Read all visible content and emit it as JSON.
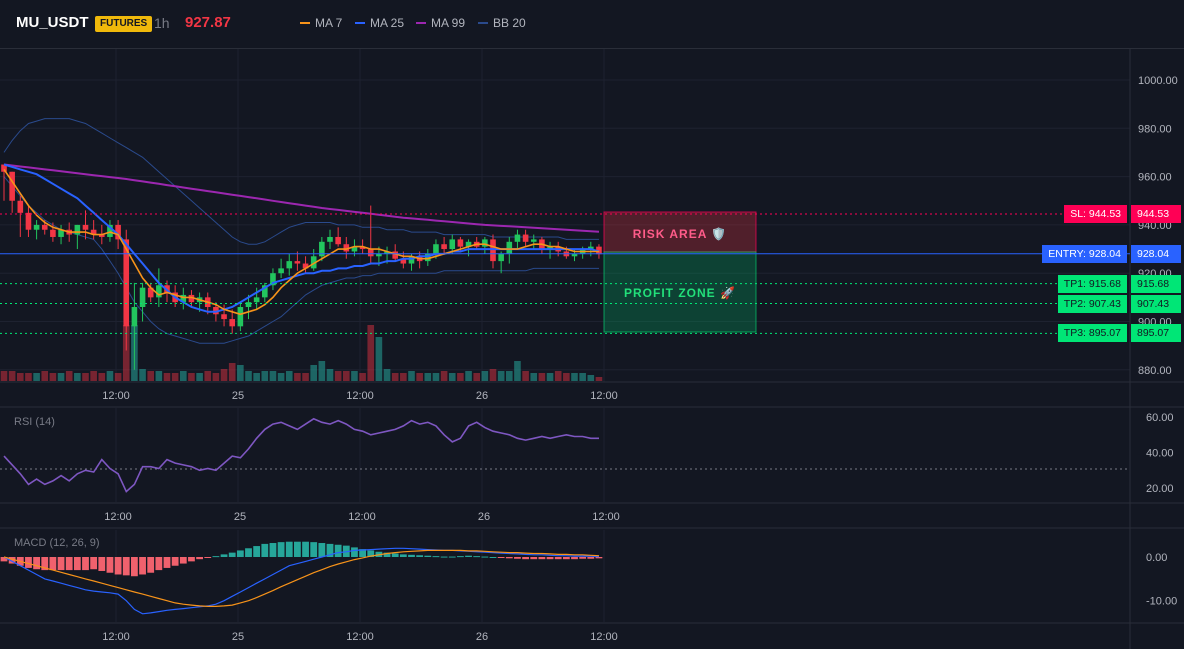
{
  "header": {
    "symbol": "MU_USDT",
    "badge": "FUTURES",
    "timeframe": "1h",
    "price": "927.87",
    "legend": [
      {
        "label": "MA 7",
        "color": "#f7931a"
      },
      {
        "label": "MA 25",
        "color": "#2962ff"
      },
      {
        "label": "MA 99",
        "color": "#9c27b0"
      },
      {
        "label": "BB 20",
        "color": "#2a4a8c"
      }
    ]
  },
  "colors": {
    "up": "#22c55e",
    "down": "#f23645",
    "ma7": "#f7931a",
    "ma25": "#2962ff",
    "ma99": "#9c27b0",
    "bb": "#2a4a8c",
    "rsi": "#7e57c2",
    "tp": "#00e676",
    "entry": "#2962ff",
    "sl": "#ff0055"
  },
  "price_axis": [
    "1000.00",
    "980.00",
    "960.00",
    "940.00",
    "920.00",
    "900.00",
    "880.00"
  ],
  "time_axis": [
    "12:00",
    "25",
    "12:00",
    "26",
    "12:00"
  ],
  "rsi": {
    "label": "RSI (14)",
    "axis": [
      "60.00",
      "40.00",
      "20.00"
    ]
  },
  "macd": {
    "label": "MACD (12, 26, 9)",
    "axis": [
      "0.00",
      "-10.00"
    ]
  },
  "zones": {
    "risk": "RISK AREA 🛡️",
    "profit": "PROFIT ZONE 🚀"
  },
  "levels": [
    {
      "name": "sl",
      "text": "SL: 944.53",
      "value": "944.53",
      "price": 944.53
    },
    {
      "name": "entry",
      "text": "ENTRY: 928.04",
      "value": "928.04",
      "price": 928.04
    },
    {
      "name": "tp1",
      "text": "TP1: 915.68",
      "value": "915.68",
      "price": 915.68
    },
    {
      "name": "tp2",
      "text": "TP2: 907.43",
      "value": "907.43",
      "price": 907.43
    },
    {
      "name": "tp3",
      "text": "TP3: 895.07",
      "value": "895.07",
      "price": 895.07
    }
  ],
  "chart_data": [
    {
      "type": "candlestick",
      "title": "MU_USDT 1h",
      "y_axis_ticks": [
        1000,
        980,
        960,
        940,
        920,
        900,
        880
      ],
      "ohlc": [
        [
          965,
          965,
          950,
          962
        ],
        [
          962,
          962,
          945,
          950
        ],
        [
          950,
          952,
          935,
          945
        ],
        [
          945,
          948,
          935,
          938
        ],
        [
          938,
          942,
          934,
          940
        ],
        [
          940,
          942,
          936,
          938
        ],
        [
          938,
          941,
          933,
          935
        ],
        [
          935,
          940,
          932,
          938
        ],
        [
          938,
          941,
          933,
          936
        ],
        [
          936,
          940,
          930,
          940
        ],
        [
          940,
          946,
          934,
          938
        ],
        [
          938,
          942,
          934,
          936
        ],
        [
          936,
          940,
          932,
          935
        ],
        [
          935,
          942,
          933,
          940
        ],
        [
          940,
          942,
          930,
          934
        ],
        [
          934,
          938,
          888,
          898
        ],
        [
          898,
          916,
          880,
          906
        ],
        [
          906,
          916,
          900,
          914
        ],
        [
          914,
          916,
          908,
          910
        ],
        [
          910,
          922,
          906,
          915
        ],
        [
          915,
          917,
          908,
          912
        ],
        [
          912,
          915,
          906,
          908
        ],
        [
          908,
          914,
          905,
          911
        ],
        [
          911,
          913,
          906,
          908
        ],
        [
          908,
          912,
          904,
          910
        ],
        [
          910,
          912,
          903,
          906
        ],
        [
          906,
          908,
          900,
          903
        ],
        [
          903,
          907,
          898,
          901
        ],
        [
          901,
          905,
          895,
          898
        ],
        [
          898,
          908,
          896,
          906
        ],
        [
          906,
          911,
          901,
          908
        ],
        [
          908,
          914,
          905,
          910
        ],
        [
          910,
          916,
          908,
          915
        ],
        [
          915,
          922,
          913,
          920
        ],
        [
          920,
          926,
          918,
          922
        ],
        [
          922,
          928,
          919,
          925
        ],
        [
          925,
          929,
          921,
          924
        ],
        [
          924,
          927,
          920,
          922
        ],
        [
          922,
          930,
          921,
          927
        ],
        [
          927,
          935,
          925,
          933
        ],
        [
          933,
          938,
          930,
          935
        ],
        [
          935,
          939,
          931,
          932
        ],
        [
          932,
          935,
          926,
          929
        ],
        [
          929,
          934,
          927,
          931
        ],
        [
          931,
          934,
          928,
          930
        ],
        [
          930,
          948,
          924,
          927
        ],
        [
          927,
          931,
          923,
          928
        ],
        [
          928,
          931,
          924,
          929
        ],
        [
          929,
          932,
          925,
          926
        ],
        [
          926,
          929,
          922,
          924
        ],
        [
          924,
          928,
          921,
          927
        ],
        [
          927,
          929,
          922,
          925
        ],
        [
          925,
          930,
          923,
          928
        ],
        [
          928,
          934,
          926,
          932
        ],
        [
          932,
          935,
          928,
          930
        ],
        [
          930,
          936,
          928,
          934
        ],
        [
          934,
          935,
          929,
          931
        ],
        [
          931,
          934,
          927,
          933
        ],
        [
          933,
          935,
          930,
          931
        ],
        [
          931,
          935,
          928,
          934
        ],
        [
          934,
          936,
          922,
          925
        ],
        [
          925,
          929,
          920,
          928
        ],
        [
          928,
          935,
          924,
          933
        ],
        [
          933,
          938,
          930,
          936
        ],
        [
          936,
          938,
          931,
          933
        ],
        [
          933,
          936,
          930,
          934
        ],
        [
          934,
          935,
          928,
          930
        ],
        [
          930,
          933,
          926,
          931
        ],
        [
          931,
          933,
          927,
          929
        ],
        [
          929,
          931,
          926,
          927
        ],
        [
          927,
          930,
          925,
          928
        ],
        [
          928,
          931,
          926,
          930
        ],
        [
          930,
          933,
          927,
          931
        ],
        [
          931,
          932,
          926,
          927.87
        ]
      ],
      "ma7": [
        963,
        958,
        953,
        948,
        944,
        941,
        939,
        938,
        937,
        937,
        937,
        936,
        936,
        937,
        936,
        930,
        924,
        918,
        914,
        911,
        912,
        911,
        910,
        910,
        909,
        908,
        907,
        905,
        904,
        903,
        904,
        905,
        907,
        910,
        914,
        917,
        920,
        922,
        924,
        926,
        928,
        930,
        930,
        931,
        931,
        930,
        930,
        929,
        928,
        927,
        927,
        926,
        926,
        927,
        928,
        929,
        930,
        931,
        932,
        932,
        931,
        930,
        930,
        930,
        931,
        932,
        932,
        931,
        931,
        930,
        929,
        929,
        929,
        929
      ],
      "ma25": [
        965,
        964,
        963,
        962,
        961,
        959,
        957,
        955,
        953,
        951,
        948,
        945,
        942,
        939,
        936,
        932,
        928,
        924,
        920,
        916,
        913,
        910,
        908,
        906,
        905,
        904,
        904,
        905,
        906,
        908,
        910,
        912,
        914,
        916,
        917,
        918,
        919,
        920,
        920,
        921,
        921,
        922,
        922,
        923,
        923,
        924,
        924,
        925,
        925,
        926,
        926,
        927,
        927,
        928,
        928,
        929,
        929,
        930,
        930,
        930,
        930,
        930,
        930,
        930,
        930,
        930,
        930,
        930,
        930,
        930,
        930,
        930,
        930,
        929
      ],
      "ma99": [
        965,
        964.6,
        964.2,
        963.8,
        963.4,
        963,
        962.6,
        962.2,
        961.8,
        961.4,
        961,
        960.6,
        960.2,
        959.8,
        959.4,
        959,
        958.5,
        958,
        957.5,
        957,
        956.5,
        956,
        955.5,
        955,
        954.5,
        954,
        953.5,
        953,
        952.5,
        952,
        951.5,
        951,
        950.5,
        950,
        949.5,
        949,
        948.5,
        948,
        947.5,
        947,
        946.6,
        946.2,
        945.8,
        945.4,
        945,
        944.6,
        944.2,
        943.8,
        943.4,
        943,
        942.7,
        942.4,
        942.1,
        941.8,
        941.5,
        941.2,
        940.9,
        940.6,
        940.3,
        940,
        939.8,
        939.6,
        939.4,
        939.2,
        939,
        938.8,
        938.6,
        938.4,
        938.2,
        938,
        937.8,
        937.6,
        937.4,
        937.2
      ],
      "bb_upper": [
        970,
        975,
        979,
        982,
        983,
        984,
        984,
        984,
        984,
        983,
        982,
        980,
        978,
        976,
        974,
        972,
        970,
        968,
        965,
        962,
        959,
        956,
        953,
        950,
        947,
        944,
        941,
        938,
        935,
        933,
        932,
        932,
        933,
        935,
        937,
        939,
        940,
        941,
        941,
        941,
        941,
        940,
        940,
        940,
        939,
        939,
        939,
        938,
        938,
        938,
        937,
        937,
        937,
        937,
        936,
        936,
        936,
        936,
        936,
        936,
        935,
        935,
        935,
        935,
        935,
        935,
        935,
        935,
        935,
        934,
        934,
        934,
        934,
        934
      ],
      "bb_lower": [
        960,
        956,
        952,
        948,
        945,
        942,
        940,
        938,
        937,
        936,
        935,
        934,
        930,
        925,
        920,
        914,
        908,
        904,
        900,
        897,
        895,
        894,
        893,
        892,
        891,
        891,
        891,
        891,
        892,
        893,
        894,
        896,
        898,
        900,
        902,
        905,
        908,
        911,
        913,
        915,
        916,
        917,
        918,
        918,
        919,
        919,
        920,
        920,
        920,
        920,
        920,
        920,
        920,
        920,
        921,
        921,
        921,
        921,
        921,
        921,
        921,
        921,
        921,
        921,
        921,
        922,
        922,
        922,
        922,
        922,
        922,
        922,
        922,
        922
      ],
      "volume": [
        5,
        5,
        4,
        4,
        4,
        5,
        4,
        4,
        5,
        4,
        4,
        5,
        4,
        5,
        4,
        28,
        28,
        6,
        5,
        5,
        4,
        4,
        5,
        4,
        4,
        5,
        4,
        6,
        9,
        8,
        5,
        4,
        5,
        5,
        4,
        5,
        4,
        4,
        8,
        10,
        6,
        5,
        5,
        5,
        4,
        28,
        22,
        6,
        4,
        4,
        5,
        4,
        4,
        4,
        5,
        4,
        4,
        5,
        4,
        5,
        6,
        5,
        5,
        10,
        5,
        4,
        4,
        4,
        5,
        4,
        4,
        4,
        3,
        2
      ]
    },
    {
      "type": "line",
      "title": "RSI (14)",
      "y_axis_ticks": [
        60,
        40,
        20
      ],
      "values": [
        38,
        33,
        28,
        22,
        25,
        22,
        24,
        27,
        24,
        28,
        30,
        29,
        36,
        31,
        28,
        18,
        22,
        32,
        32,
        31,
        36,
        34,
        33,
        32,
        30,
        31,
        30,
        34,
        38,
        37,
        42,
        48,
        53,
        56,
        57,
        55,
        53,
        56,
        59,
        57,
        56,
        58,
        56,
        53,
        52,
        50,
        51,
        52,
        53,
        55,
        58,
        56,
        57,
        55,
        50,
        46,
        48,
        55,
        57,
        54,
        52,
        51,
        50,
        48,
        47,
        48,
        49,
        48,
        49,
        50,
        49,
        49,
        48,
        48
      ]
    },
    {
      "type": "bar",
      "title": "MACD (12, 26, 9)",
      "y_axis_ticks": [
        0,
        -10
      ],
      "histogram": [
        -1,
        -1.5,
        -2,
        -2.5,
        -2.8,
        -3,
        -3,
        -3,
        -3,
        -3,
        -3,
        -2.8,
        -3.2,
        -3.6,
        -4,
        -4.2,
        -4.4,
        -4,
        -3.6,
        -3,
        -2.5,
        -2,
        -1.5,
        -1,
        -0.5,
        -0.2,
        0.2,
        0.6,
        1,
        1.5,
        2,
        2.5,
        3,
        3.2,
        3.4,
        3.5,
        3.5,
        3.5,
        3.4,
        3.2,
        3,
        2.8,
        2.6,
        2.2,
        1.8,
        1.5,
        1.2,
        1,
        0.8,
        0.6,
        0.5,
        0.4,
        0.3,
        0.2,
        0.1,
        0.1,
        0.2,
        0.3,
        0.2,
        0.1,
        0,
        -0.2,
        -0.3,
        -0.4,
        -0.5,
        -0.5,
        -0.5,
        -0.5,
        -0.5,
        -0.5,
        -0.5,
        -0.4,
        -0.4,
        -0.3
      ],
      "macd": [
        0,
        -1,
        -2,
        -3,
        -4,
        -5,
        -5.5,
        -6,
        -6.5,
        -7,
        -7.5,
        -7.8,
        -8,
        -8.2,
        -8.5,
        -10,
        -12,
        -13,
        -12.8,
        -12.5,
        -12.2,
        -12,
        -11.8,
        -11.6,
        -11.4,
        -11.2,
        -10.8,
        -10,
        -9,
        -8,
        -7,
        -6,
        -5,
        -4,
        -3,
        -2,
        -1.5,
        -1,
        -0.5,
        0,
        0.5,
        1,
        1.2,
        1.5,
        1.6,
        1.7,
        1.8,
        1.9,
        2,
        2,
        1.9,
        1.8,
        1.7,
        1.6,
        1.5,
        1.5,
        1.4,
        1.3,
        1.2,
        1.1,
        1,
        0.9,
        0.8,
        0.7,
        0.6,
        0.5,
        0.5,
        0.4,
        0.3,
        0.3,
        0.2,
        0.2,
        0.2,
        0.1
      ],
      "signal": [
        0,
        -0.5,
        -1,
        -1.5,
        -2,
        -2.5,
        -3,
        -3.5,
        -4,
        -4.5,
        -5,
        -5.5,
        -6,
        -6.5,
        -7,
        -7.5,
        -8,
        -8.5,
        -9,
        -9.5,
        -10,
        -10.5,
        -10.8,
        -11,
        -11.2,
        -11.3,
        -11.3,
        -11.2,
        -11,
        -10.5,
        -10,
        -9.3,
        -8.5,
        -7.7,
        -6.8,
        -6,
        -5.2,
        -4.4,
        -3.6,
        -2.9,
        -2.2,
        -1.6,
        -1.1,
        -0.6,
        -0.2,
        0.2,
        0.5,
        0.8,
        1,
        1.2,
        1.3,
        1.4,
        1.5,
        1.5,
        1.5,
        1.5,
        1.5,
        1.4,
        1.4,
        1.3,
        1.2,
        1.1,
        1,
        1,
        0.9,
        0.8,
        0.8,
        0.7,
        0.6,
        0.6,
        0.5,
        0.5,
        0.4,
        0.3
      ]
    }
  ]
}
